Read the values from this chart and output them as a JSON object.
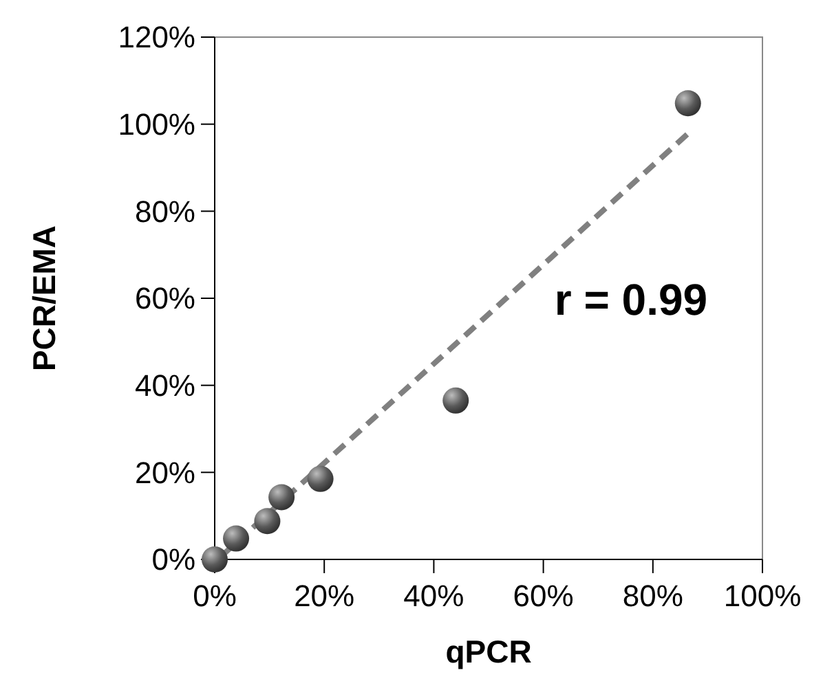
{
  "chart_data": {
    "type": "scatter",
    "xlabel": "qPCR",
    "ylabel": "PCR/EMA",
    "xlim": [
      0,
      100
    ],
    "ylim": [
      0,
      120
    ],
    "xticks": [
      {
        "value": 0,
        "label": "0%"
      },
      {
        "value": 20,
        "label": "20%"
      },
      {
        "value": 40,
        "label": "40%"
      },
      {
        "value": 60,
        "label": "60%"
      },
      {
        "value": 80,
        "label": "80%"
      },
      {
        "value": 100,
        "label": "100%"
      }
    ],
    "yticks": [
      {
        "value": 0,
        "label": "0%"
      },
      {
        "value": 20,
        "label": "20%"
      },
      {
        "value": 40,
        "label": "40%"
      },
      {
        "value": 60,
        "label": "60%"
      },
      {
        "value": 80,
        "label": "80%"
      },
      {
        "value": 100,
        "label": "100%"
      },
      {
        "value": 120,
        "label": "120%"
      }
    ],
    "grid": false,
    "marker": "circle",
    "series": [
      {
        "type": "line",
        "color": "#808080",
        "line_style": "dashed",
        "marker": "none",
        "x": [
          1,
          87
        ],
        "values": [
          0.5,
          98.5
        ]
      },
      {
        "color": "#5a5a5a",
        "x": [
          0,
          3.9,
          9.6,
          12.2,
          19.3,
          44,
          86.4
        ],
        "values": [
          0,
          4.8,
          8.8,
          14.3,
          18.5,
          36.5,
          104.8
        ]
      }
    ],
    "annotations": [
      "r = 0.99"
    ]
  }
}
